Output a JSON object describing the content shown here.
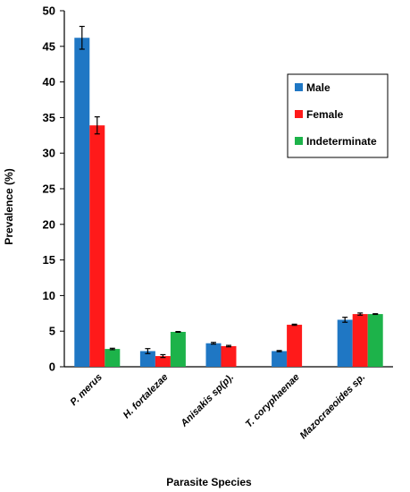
{
  "chart_data": {
    "type": "bar",
    "title": "",
    "xlabel": "Parasite Species",
    "ylabel": "Prevalence (%)",
    "ylim": [
      0,
      50
    ],
    "yticks": [
      0,
      5,
      10,
      15,
      20,
      25,
      30,
      35,
      40,
      45,
      50
    ],
    "categories": [
      "P. merus",
      "H. fortalezae",
      "Anisakis sp(p).",
      "T. coryphaenae",
      "Mazocraeoides sp."
    ],
    "series": [
      {
        "name": "Male",
        "color": "#1f77c4",
        "values": [
          46.2,
          2.2,
          3.3,
          2.2,
          6.6
        ],
        "errors": [
          1.6,
          0.35,
          0.12,
          0.08,
          0.35
        ]
      },
      {
        "name": "Female",
        "color": "#ff1a1a",
        "values": [
          33.9,
          1.5,
          2.9,
          5.9,
          7.4
        ],
        "errors": [
          1.2,
          0.2,
          0.1,
          0.08,
          0.15
        ]
      },
      {
        "name": "Indeterminate",
        "color": "#1db34a",
        "values": [
          2.5,
          4.9,
          0,
          0,
          7.4
        ],
        "errors": [
          0.1,
          0.05,
          0,
          0,
          0.05
        ]
      }
    ],
    "legend_position": "top-right",
    "grid": false
  }
}
